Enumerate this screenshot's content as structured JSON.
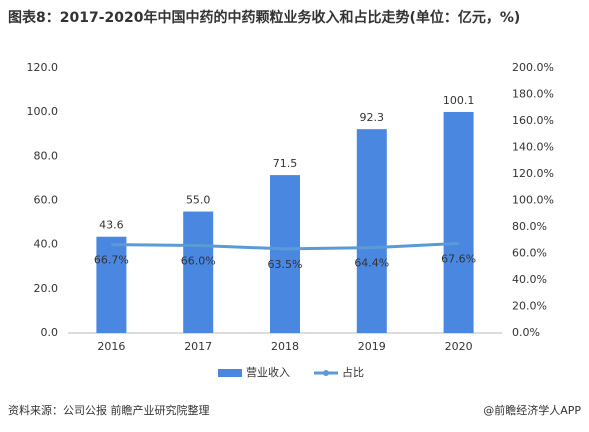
{
  "chart_data": {
    "type": "bar",
    "title": "图表8：2017-2020年中国中药的中药颗粒业务收入和占比走势(单位：亿元，%)",
    "categories": [
      "2016",
      "2017",
      "2018",
      "2019",
      "2020"
    ],
    "series": [
      {
        "name": "营业收入",
        "type": "bar",
        "color": "#4a87e0",
        "values": [
          43.6,
          55.0,
          71.5,
          92.3,
          100.1
        ],
        "value_labels": [
          "43.6",
          "55.0",
          "71.5",
          "92.3",
          "100.1"
        ]
      },
      {
        "name": "占比",
        "type": "line",
        "axis": "y2",
        "color": "#5b9bd5",
        "values": [
          66.7,
          66.0,
          63.5,
          64.4,
          67.6
        ],
        "value_labels": [
          "66.7%",
          "66.0%",
          "63.5%",
          "64.4%",
          "67.6%"
        ]
      }
    ],
    "ylim": [
      0,
      120
    ],
    "yticks": [
      {
        "value": 0,
        "label": "0.0"
      },
      {
        "value": 20,
        "label": "20.0"
      },
      {
        "value": 40,
        "label": "40.0"
      },
      {
        "value": 60,
        "label": "60.0"
      },
      {
        "value": 80,
        "label": "80.0"
      },
      {
        "value": 100,
        "label": "100.0"
      },
      {
        "value": 120,
        "label": "120.0"
      }
    ],
    "y2lim": [
      0,
      200
    ],
    "y2ticks": [
      {
        "value": 0,
        "label": "0.0%"
      },
      {
        "value": 20,
        "label": "20.0%"
      },
      {
        "value": 40,
        "label": "40.0%"
      },
      {
        "value": 60,
        "label": "60.0%"
      },
      {
        "value": 80,
        "label": "80.0%"
      },
      {
        "value": 100,
        "label": "100.0%"
      },
      {
        "value": 120,
        "label": "120.0%"
      },
      {
        "value": 140,
        "label": "140.0%"
      },
      {
        "value": 160,
        "label": "160.0%"
      },
      {
        "value": 180,
        "label": "180.0%"
      },
      {
        "value": 200,
        "label": "200.0%"
      }
    ],
    "grid": false,
    "legend": "bottom",
    "source": "资料来源：公司公报 前瞻产业研究院整理",
    "credit": "@前瞻经济学人APP"
  }
}
